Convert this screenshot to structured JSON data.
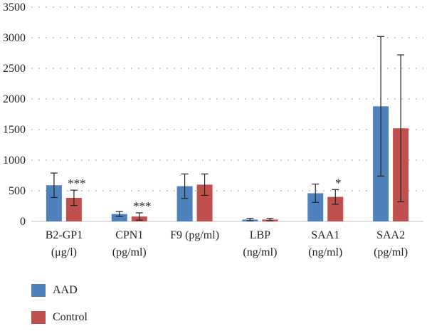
{
  "chart_data": {
    "type": "bar",
    "ylim": [
      0,
      3500
    ],
    "yticks": [
      0,
      500,
      1000,
      1500,
      2000,
      2500,
      3000,
      3500
    ],
    "grid": true,
    "legend_position": "bottom-left",
    "categories": [
      {
        "line1": "B2-GP1",
        "line2": "(μg/l)"
      },
      {
        "line1": "CPN1",
        "line2": "(pg/ml)"
      },
      {
        "line1": "F9 (pg/ml)",
        "line2": ""
      },
      {
        "line1": "LBP",
        "line2": "(ng/ml)"
      },
      {
        "line1": "SAA1",
        "line2": "(ng/ml)"
      },
      {
        "line1": "SAA2",
        "line2": "(pg/ml)"
      }
    ],
    "series": [
      {
        "name": "AAD",
        "color": "#4f81bd",
        "values": [
          590,
          120,
          575,
          30,
          460,
          1880
        ],
        "errors": [
          200,
          40,
          200,
          20,
          150,
          1140
        ]
      },
      {
        "name": "Control",
        "color": "#c0504d",
        "values": [
          385,
          80,
          600,
          30,
          400,
          1520
        ],
        "errors": [
          125,
          60,
          175,
          20,
          120,
          1200
        ]
      }
    ],
    "annotations": [
      {
        "category_index": 0,
        "series_index": 1,
        "text": "***"
      },
      {
        "category_index": 1,
        "series_index": 1,
        "text": "***"
      },
      {
        "category_index": 4,
        "series_index": 1,
        "text": "*"
      }
    ]
  }
}
